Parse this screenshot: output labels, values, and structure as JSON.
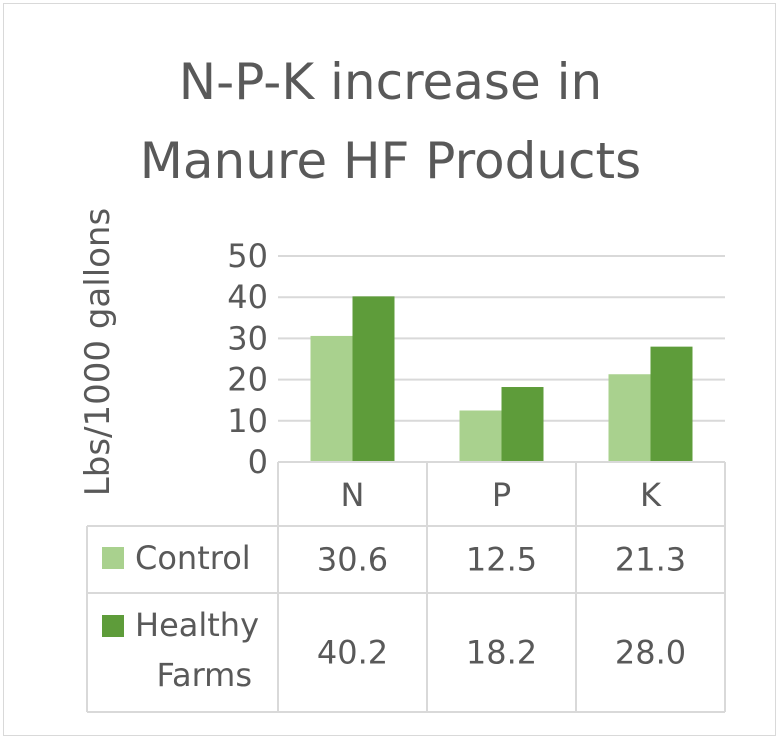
{
  "chart_data": {
    "type": "bar",
    "title_lines": [
      "N-P-K increase in",
      "Manure HF Products"
    ],
    "xlabel": "",
    "ylabel": "Lbs/1000 gallons",
    "ylim": [
      0,
      50
    ],
    "yticks": [
      0,
      10,
      20,
      30,
      40,
      50
    ],
    "grid": true,
    "categories": [
      "N",
      "P",
      "K"
    ],
    "series": [
      {
        "name": "Control",
        "legend_lines": [
          "Control"
        ],
        "color": "#a9d18e",
        "values": [
          30.6,
          12.5,
          21.3
        ]
      },
      {
        "name": "Healthy Farms",
        "legend_lines": [
          "Healthy",
          "Farms"
        ],
        "color": "#5e9c3a",
        "values": [
          40.2,
          18.2,
          28.0
        ]
      }
    ],
    "data_table": true,
    "value_labels": [
      [
        "30.6",
        "12.5",
        "21.3"
      ],
      [
        "40.2",
        "18.2",
        "28.0"
      ]
    ]
  }
}
